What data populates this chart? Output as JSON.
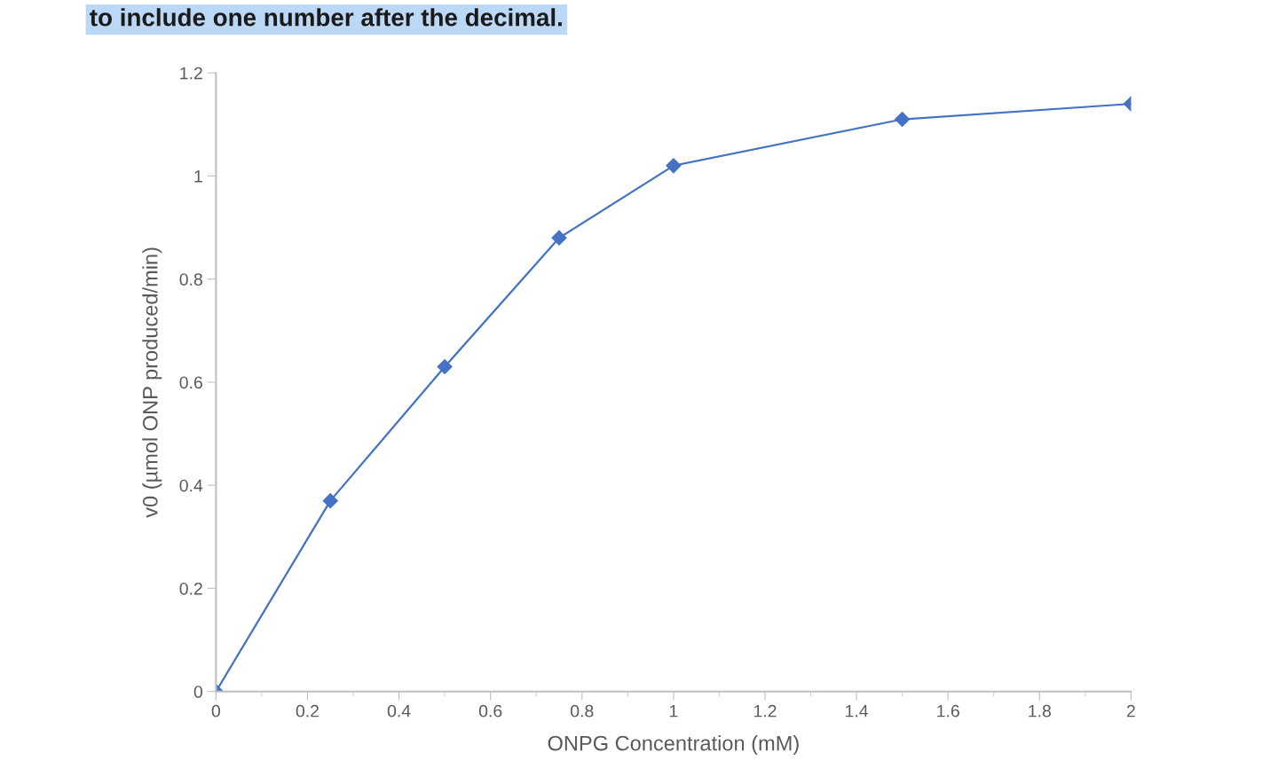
{
  "chart_data": {
    "type": "line",
    "annotations": [
      "to include one number after the decimal."
    ],
    "xlabel": "ONPG Concentration (mM)",
    "ylabel": "v0 (µmol ONP produced/min)",
    "x": [
      0,
      0.25,
      0.5,
      0.75,
      1,
      1.5,
      2
    ],
    "series": [
      {
        "color": "#4472c4",
        "values": [
          0,
          0.37,
          0.63,
          0.88,
          1.02,
          1.11,
          1.14
        ]
      }
    ],
    "xlim": [
      0,
      2
    ],
    "xticks": [
      0,
      0.2,
      0.4,
      0.6,
      0.8,
      1,
      1.2,
      1.4,
      1.6,
      1.8,
      2
    ],
    "ylim": [
      0,
      1.2
    ],
    "yticks": [
      0,
      0.2,
      0.4,
      0.6,
      0.8,
      1,
      1.2
    ],
    "grid": false,
    "legend": false,
    "marker": "diamond",
    "line_style": "solid"
  }
}
